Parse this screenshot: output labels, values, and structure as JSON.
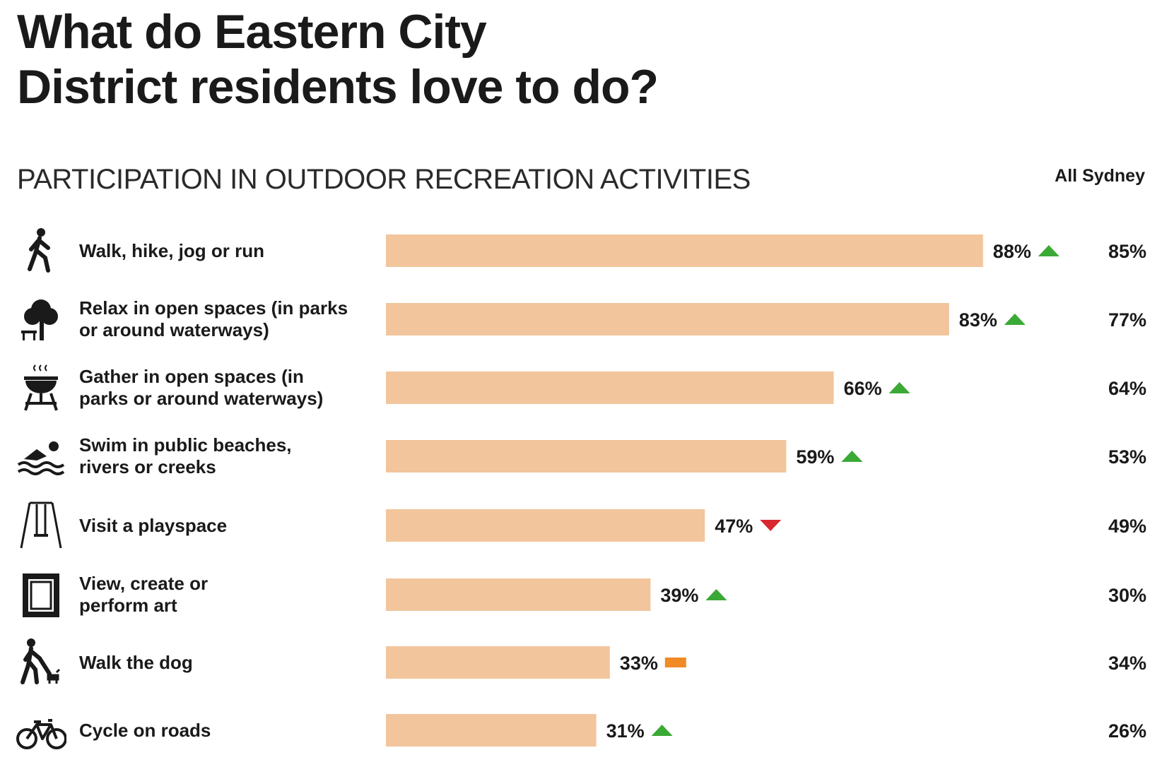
{
  "header": {
    "title_line1": "What do Eastern City",
    "title_line2": "District residents love to do?"
  },
  "chart_data": {
    "type": "bar",
    "orientation": "horizontal",
    "title": "PARTICIPATION IN OUTDOOR RECREATION ACTIVITIES",
    "comparison_label": "All Sydney",
    "xlim": [
      0,
      100
    ],
    "bar_color": "#f2c59c",
    "categories": [
      "Walk, hike, jog or run",
      "Relax in open spaces (in parks or around waterways)",
      "Gather in open spaces (in parks or around waterways)",
      "Swim in public beaches, rivers or creeks",
      "Visit a playspace",
      "View, create or perform art",
      "Walk the dog",
      "Cycle on roads"
    ],
    "label_lines": [
      [
        "Walk, hike, jog or run"
      ],
      [
        "Relax in open spaces (in parks",
        "or around waterways)"
      ],
      [
        "Gather in open spaces (in",
        "parks or around waterways)"
      ],
      [
        "Swim in public beaches,",
        "rivers or creeks"
      ],
      [
        "Visit a playspace"
      ],
      [
        "View, create or",
        "perform art"
      ],
      [
        "Walk the dog"
      ],
      [
        "Cycle on roads"
      ]
    ],
    "icons": [
      "walker-icon",
      "tree-bench-icon",
      "bbq-icon",
      "swimmer-icon",
      "swing-icon",
      "art-frame-icon",
      "dog-walker-icon",
      "bicycle-icon"
    ],
    "series": [
      {
        "name": "Eastern City District",
        "values": [
          88,
          83,
          66,
          59,
          47,
          39,
          33,
          31
        ],
        "value_labels": [
          "88%",
          "83%",
          "66%",
          "59%",
          "47%",
          "39%",
          "33%",
          "31%"
        ]
      },
      {
        "name": "All Sydney",
        "values": [
          85,
          77,
          64,
          53,
          49,
          30,
          34,
          26
        ],
        "value_labels": [
          "85%",
          "77%",
          "64%",
          "53%",
          "49%",
          "30%",
          "34%",
          "26%"
        ]
      }
    ],
    "trend": [
      "up",
      "up",
      "up",
      "up",
      "down",
      "up",
      "same",
      "up"
    ],
    "trend_colors": {
      "up": "#3aa935",
      "down": "#d7282f",
      "same": "#f08a24"
    }
  }
}
